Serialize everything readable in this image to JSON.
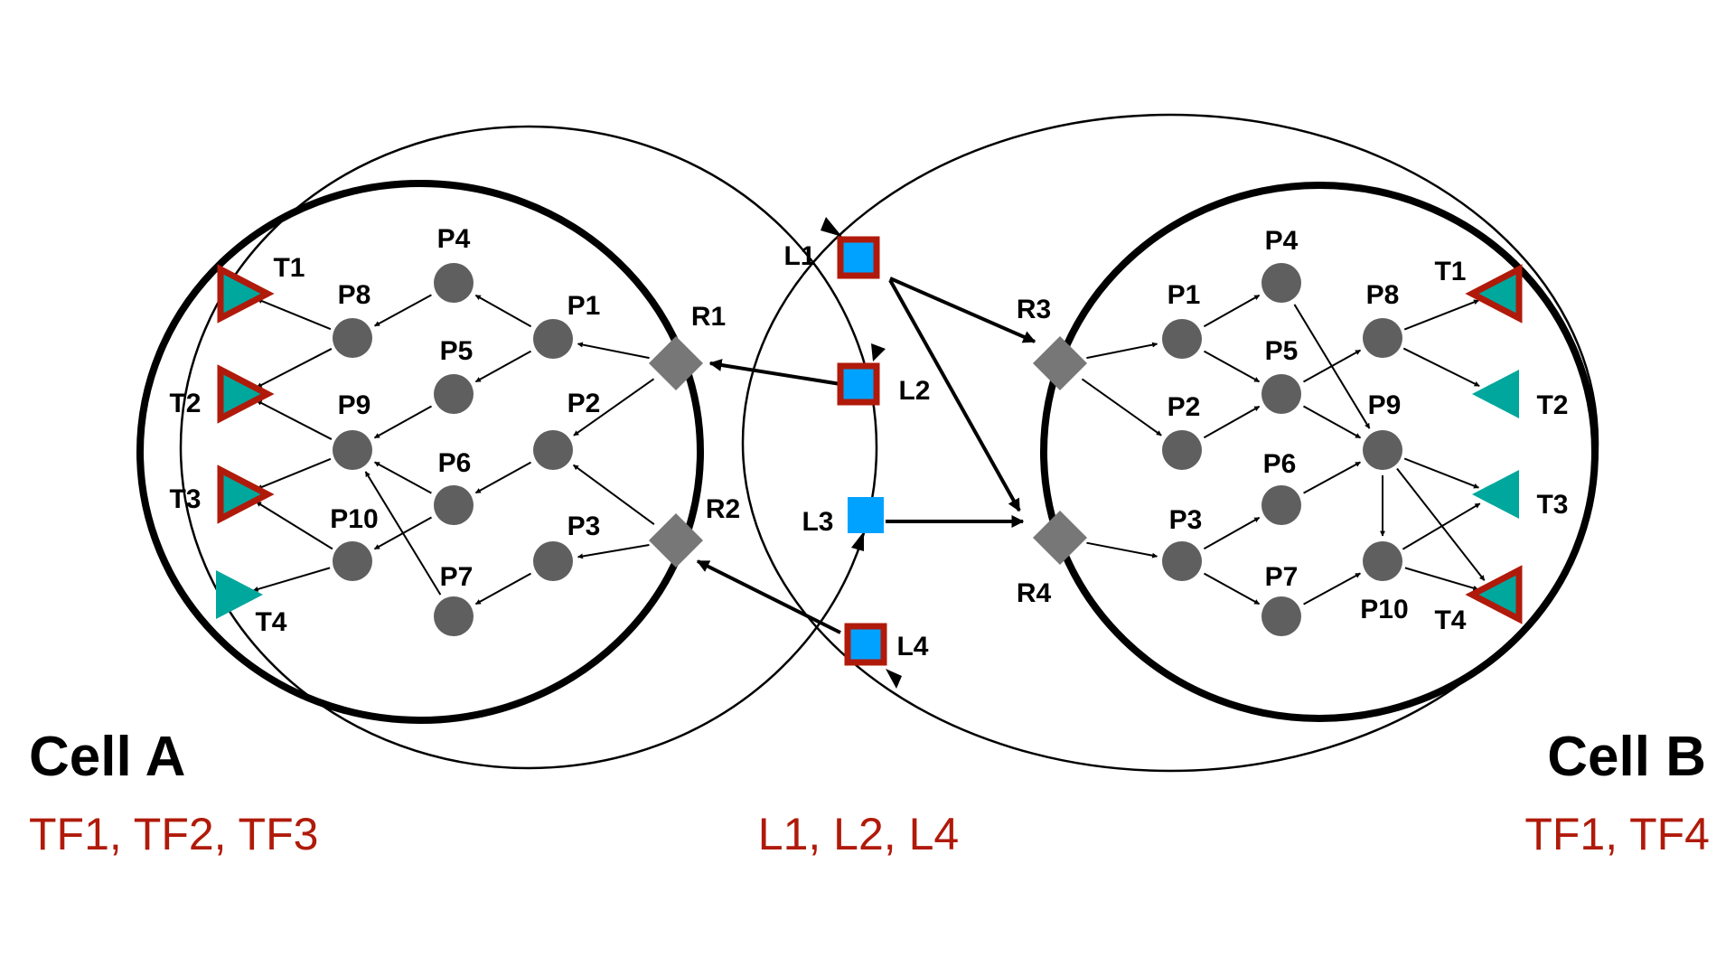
{
  "cell_a": {
    "title": "Cell A",
    "active_tfs": "TF1, TF2, TF3",
    "proteins": [
      "P1",
      "P2",
      "P3",
      "P4",
      "P5",
      "P6",
      "P7",
      "P8",
      "P9",
      "P10"
    ],
    "receptors": [
      "R1",
      "R2"
    ],
    "tfs": [
      {
        "label": "T1",
        "active": true
      },
      {
        "label": "T2",
        "active": true
      },
      {
        "label": "T3",
        "active": true
      },
      {
        "label": "T4",
        "active": false
      }
    ]
  },
  "cell_b": {
    "title": "Cell B",
    "active_tfs": "TF1, TF4",
    "proteins": [
      "P1",
      "P2",
      "P3",
      "P4",
      "P5",
      "P6",
      "P7",
      "P8",
      "P9",
      "P10"
    ],
    "receptors": [
      "R3",
      "R4"
    ],
    "tfs": [
      {
        "label": "T1",
        "active": true
      },
      {
        "label": "T2",
        "active": false
      },
      {
        "label": "T3",
        "active": false
      },
      {
        "label": "T4",
        "active": true
      }
    ]
  },
  "ligands": [
    {
      "label": "L1",
      "active": true
    },
    {
      "label": "L2",
      "active": true
    },
    {
      "label": "L3",
      "active": false
    },
    {
      "label": "L4",
      "active": true
    }
  ],
  "active_ligands": "L1, L2, L4",
  "colors": {
    "protein": "#5f5f5f",
    "receptor": "#777777",
    "tf": "#00a79d",
    "ligand": "#00a2ff",
    "active_outline": "#b01a0a",
    "accent_text": "#b01a0a"
  }
}
